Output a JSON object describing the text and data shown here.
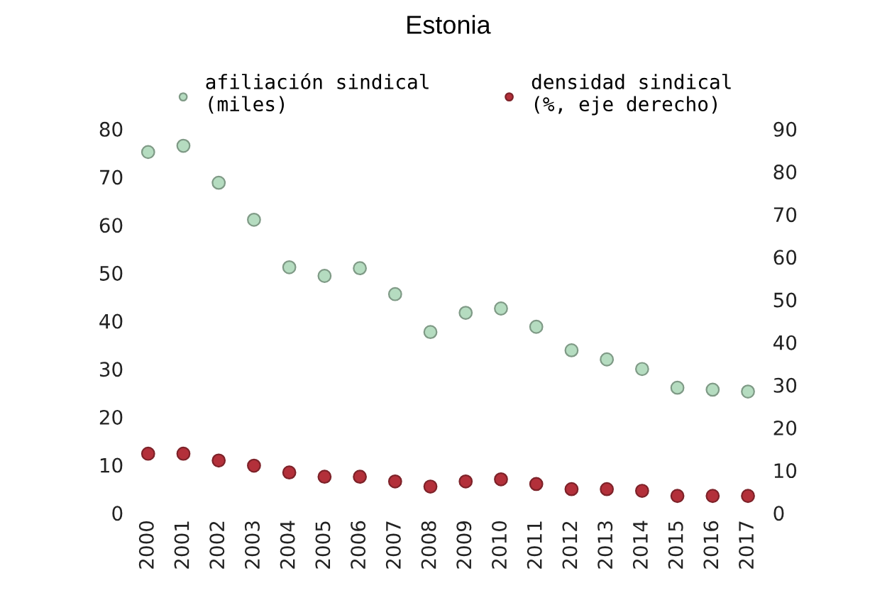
{
  "chart_data": {
    "type": "scatter",
    "title": "Estonia",
    "categories": [
      "2000",
      "2001",
      "2002",
      "2003",
      "2004",
      "2005",
      "2006",
      "2007",
      "2008",
      "2009",
      "2010",
      "2011",
      "2012",
      "2013",
      "2014",
      "2015",
      "2016",
      "2017"
    ],
    "series": [
      {
        "name": "afiliación sindical\n(miles)",
        "color": "#b5dcc0",
        "values": [
          75.2,
          76.5,
          68.8,
          61.1,
          51.2,
          49.4,
          51.0,
          45.6,
          37.7,
          41.7,
          42.6,
          38.8,
          33.9,
          32.0,
          30.0,
          26.1,
          25.7,
          25.3
        ]
      },
      {
        "name": "densidad sindical\n(%, eje derecho)",
        "color": "#b3303a",
        "axis": "y2",
        "values": [
          13.9,
          13.9,
          12.3,
          11.1,
          9.5,
          8.5,
          8.5,
          7.4,
          6.2,
          7.4,
          7.9,
          6.8,
          5.6,
          5.6,
          5.2,
          4.0,
          4.0,
          4.0
        ]
      }
    ],
    "ylim": [
      0,
      80
    ],
    "yticks": [
      0,
      10,
      20,
      30,
      40,
      50,
      60,
      70,
      80
    ],
    "y2lim": [
      0,
      90
    ],
    "y2ticks": [
      0,
      10,
      20,
      30,
      40,
      50,
      60,
      70,
      80,
      90
    ],
    "legend": "top",
    "grid": false,
    "marker": "circle"
  }
}
